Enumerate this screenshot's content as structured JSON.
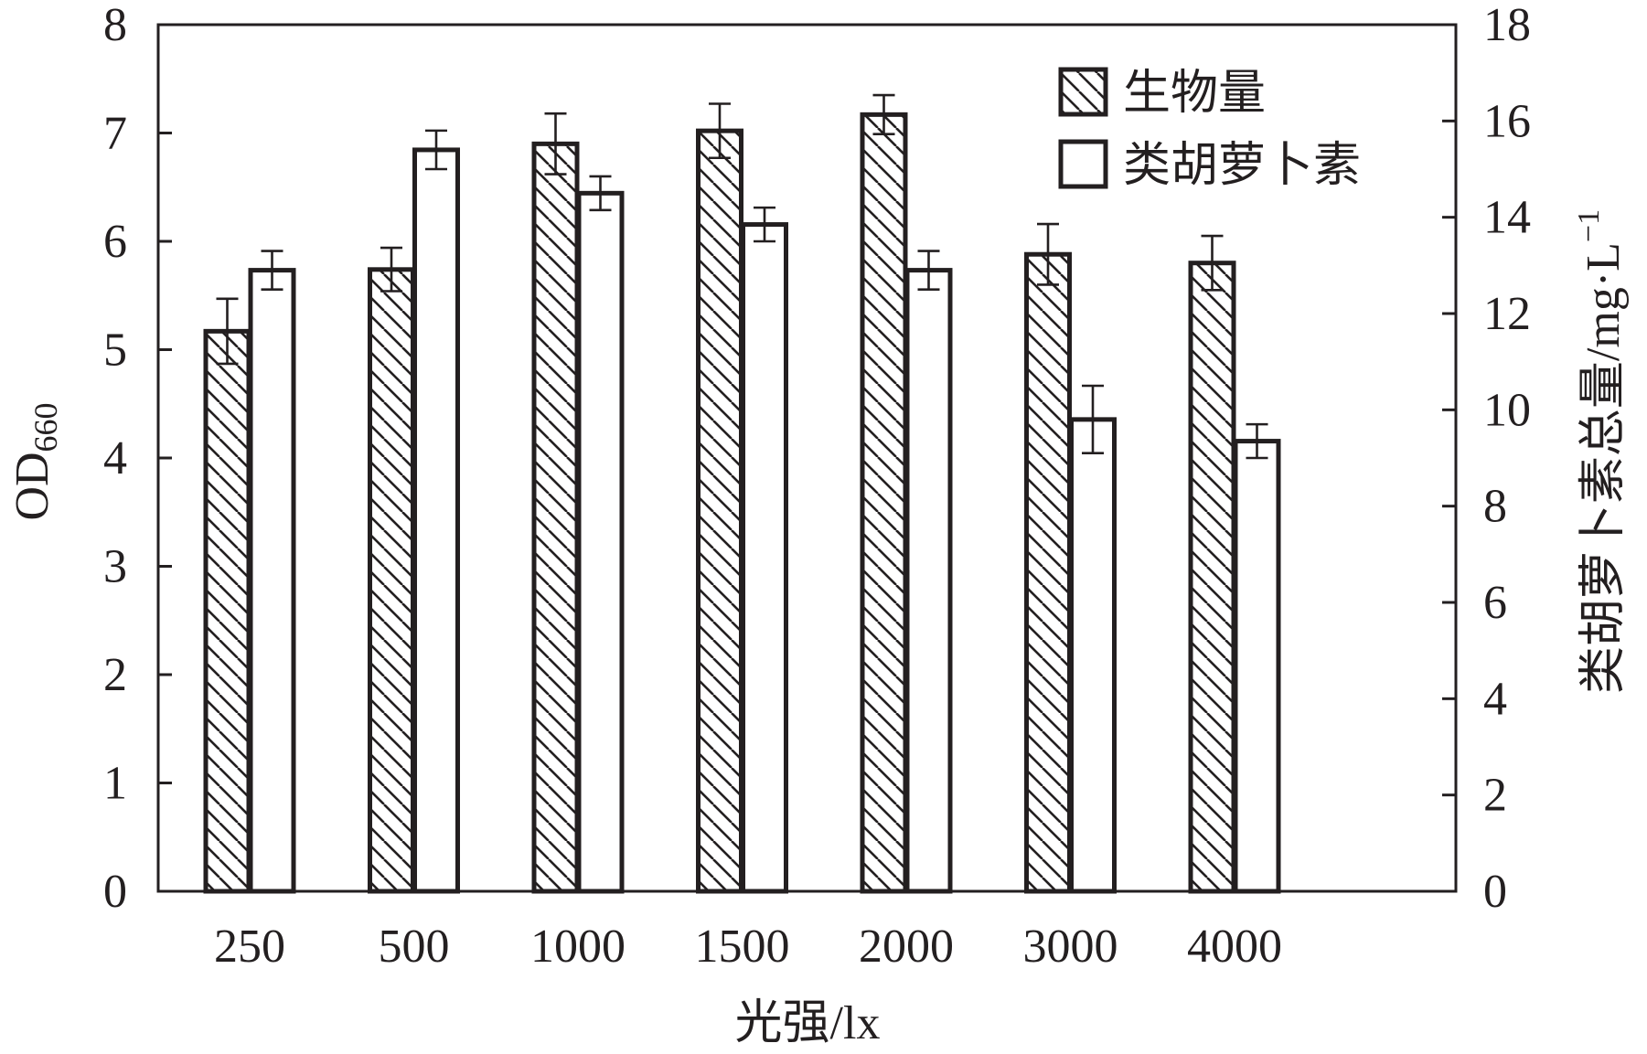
{
  "chart_data": {
    "type": "bar",
    "title": "",
    "xlabel": "光强/lx",
    "ylabel_left": {
      "main": "OD",
      "subscript": "660"
    },
    "ylabel_right": {
      "main": "类胡萝卜素总量/mg·L",
      "superscript": "−1"
    },
    "categories": [
      "250",
      "500",
      "1000",
      "1500",
      "2000",
      "3000",
      "4000"
    ],
    "left_axis": {
      "ylim": [
        0,
        8
      ],
      "ticks": [
        "0",
        "1",
        "2",
        "3",
        "4",
        "5",
        "6",
        "7",
        "8"
      ]
    },
    "right_axis": {
      "ylim": [
        0,
        18
      ],
      "ticks": [
        "0",
        "2",
        "4",
        "6",
        "8",
        "10",
        "12",
        "14",
        "16",
        "18"
      ]
    },
    "series": [
      {
        "name": "生物量",
        "axis": "left",
        "pattern": "hatch",
        "values": [
          5.17,
          5.74,
          6.9,
          7.02,
          7.17,
          5.88,
          5.8
        ],
        "errors": [
          0.3,
          0.2,
          0.28,
          0.25,
          0.18,
          0.28,
          0.25
        ]
      },
      {
        "name": "类胡萝卜素",
        "axis": "right",
        "pattern": "solid",
        "values": [
          12.9,
          15.4,
          14.5,
          13.85,
          12.9,
          9.8,
          9.35
        ],
        "errors": [
          0.4,
          0.4,
          0.35,
          0.35,
          0.4,
          0.7,
          0.35
        ]
      }
    ],
    "grid": false,
    "legend_position": "top-right",
    "colors": {
      "ink": "#231f20",
      "fill": "#ffffff"
    }
  }
}
